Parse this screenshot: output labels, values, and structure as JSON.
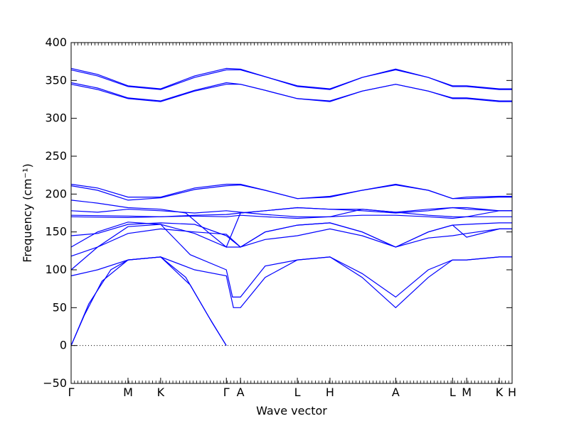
{
  "chart_data": {
    "type": "line",
    "title": "",
    "xlabel": "Wave vector",
    "ylabel": "Frequency (cm⁻¹)",
    "ylim": [
      -50,
      400
    ],
    "yticks": [
      -50,
      0,
      50,
      100,
      150,
      200,
      250,
      300,
      350,
      400
    ],
    "line_color": "#0000ff",
    "zero_line": {
      "y": 0,
      "style": "dotted",
      "color": "#000000"
    },
    "kpath": [
      {
        "label": "Γ",
        "x": 0.0
      },
      {
        "label": "M",
        "x": 0.129
      },
      {
        "label": "K",
        "x": 0.203
      },
      {
        "label": "Γ",
        "x": 0.352
      },
      {
        "label": "A",
        "x": 0.384
      },
      {
        "label": "L",
        "x": 0.513
      },
      {
        "label": "H",
        "x": 0.587
      },
      {
        "label": "A",
        "x": 0.736
      },
      {
        "label": "L",
        "x": 0.865
      },
      {
        "label": "M",
        "x": 0.897
      },
      {
        "label": "K",
        "x": 0.971
      },
      {
        "label": "H",
        "x": 1.0
      }
    ],
    "series": [
      {
        "points": [
          [
            0,
            0
          ],
          [
            0.03,
            40
          ],
          [
            0.07,
            85
          ],
          [
            0.129,
            113
          ],
          [
            0.203,
            117
          ],
          [
            0.26,
            90
          ],
          [
            0.31,
            40
          ],
          [
            0.352,
            0
          ]
        ]
      },
      {
        "points": [
          [
            0,
            0
          ],
          [
            0.04,
            55
          ],
          [
            0.09,
            100
          ],
          [
            0.129,
            113
          ],
          [
            0.203,
            117
          ],
          [
            0.27,
            80
          ],
          [
            0.32,
            30
          ],
          [
            0.352,
            0
          ]
        ]
      },
      {
        "points": [
          [
            0,
            92
          ],
          [
            0.06,
            100
          ],
          [
            0.129,
            113
          ],
          [
            0.203,
            117
          ],
          [
            0.28,
            100
          ],
          [
            0.352,
            92
          ],
          [
            0.368,
            50
          ],
          [
            0.384,
            50
          ],
          [
            0.44,
            90
          ],
          [
            0.513,
            113
          ],
          [
            0.587,
            117
          ],
          [
            0.66,
            90
          ],
          [
            0.736,
            50
          ],
          [
            0.81,
            90
          ],
          [
            0.865,
            113
          ],
          [
            0.897,
            113
          ],
          [
            0.971,
            117
          ],
          [
            1.0,
            117
          ]
        ]
      },
      {
        "points": [
          [
            0,
            100
          ],
          [
            0.06,
            130
          ],
          [
            0.129,
            157
          ],
          [
            0.203,
            160
          ],
          [
            0.27,
            120
          ],
          [
            0.352,
            100
          ],
          [
            0.366,
            64
          ],
          [
            0.384,
            64
          ],
          [
            0.44,
            105
          ],
          [
            0.513,
            113
          ],
          [
            0.587,
            117
          ],
          [
            0.66,
            95
          ],
          [
            0.736,
            64
          ],
          [
            0.81,
            100
          ],
          [
            0.865,
            113
          ],
          [
            0.897,
            113
          ],
          [
            0.971,
            117
          ],
          [
            1.0,
            117
          ]
        ]
      },
      {
        "points": [
          [
            0,
            118
          ],
          [
            0.06,
            130
          ],
          [
            0.129,
            148
          ],
          [
            0.203,
            154
          ],
          [
            0.28,
            150
          ],
          [
            0.352,
            147
          ],
          [
            0.384,
            130
          ],
          [
            0.44,
            140
          ],
          [
            0.513,
            145
          ],
          [
            0.587,
            154
          ],
          [
            0.66,
            145
          ],
          [
            0.736,
            130
          ],
          [
            0.81,
            142
          ],
          [
            0.865,
            145
          ],
          [
            0.897,
            148
          ],
          [
            0.971,
            154
          ],
          [
            1.0,
            154
          ]
        ]
      },
      {
        "points": [
          [
            0,
            130
          ],
          [
            0.06,
            150
          ],
          [
            0.129,
            163
          ],
          [
            0.203,
            160
          ],
          [
            0.28,
            148
          ],
          [
            0.352,
            130
          ],
          [
            0.384,
            130
          ],
          [
            0.44,
            150
          ],
          [
            0.513,
            159
          ],
          [
            0.587,
            162
          ],
          [
            0.66,
            150
          ],
          [
            0.736,
            130
          ],
          [
            0.81,
            150
          ],
          [
            0.865,
            159
          ],
          [
            0.897,
            143
          ],
          [
            0.971,
            154
          ],
          [
            1.0,
            154
          ]
        ]
      },
      {
        "points": [
          [
            0,
            145
          ],
          [
            0.06,
            148
          ],
          [
            0.129,
            160
          ],
          [
            0.203,
            162
          ],
          [
            0.28,
            160
          ],
          [
            0.352,
            145
          ],
          [
            0.384,
            130
          ],
          [
            0.44,
            150
          ],
          [
            0.513,
            159
          ],
          [
            0.587,
            162
          ],
          [
            0.66,
            150
          ],
          [
            0.736,
            130
          ],
          [
            0.81,
            150
          ],
          [
            0.865,
            159
          ],
          [
            0.897,
            160
          ],
          [
            0.971,
            162
          ],
          [
            1.0,
            162
          ]
        ]
      },
      {
        "points": [
          [
            0,
            170
          ],
          [
            0.129,
            169
          ],
          [
            0.203,
            170
          ],
          [
            0.28,
            171
          ],
          [
            0.352,
            170
          ],
          [
            0.384,
            172
          ],
          [
            0.44,
            170
          ],
          [
            0.513,
            168
          ],
          [
            0.587,
            170
          ],
          [
            0.66,
            172
          ],
          [
            0.736,
            172
          ],
          [
            0.81,
            170
          ],
          [
            0.865,
            168
          ],
          [
            0.897,
            170
          ],
          [
            0.971,
            170
          ],
          [
            1.0,
            170
          ]
        ]
      },
      {
        "points": [
          [
            0,
            172
          ],
          [
            0.129,
            171
          ],
          [
            0.203,
            170
          ],
          [
            0.28,
            172
          ],
          [
            0.352,
            173
          ],
          [
            0.384,
            175
          ],
          [
            0.44,
            178
          ],
          [
            0.513,
            182
          ],
          [
            0.587,
            180
          ],
          [
            0.66,
            178
          ],
          [
            0.736,
            175
          ],
          [
            0.81,
            178
          ],
          [
            0.865,
            182
          ],
          [
            0.897,
            180
          ],
          [
            0.971,
            178
          ],
          [
            1.0,
            178
          ]
        ]
      },
      {
        "points": [
          [
            0,
            178
          ],
          [
            0.06,
            176
          ],
          [
            0.129,
            180
          ],
          [
            0.203,
            178
          ],
          [
            0.28,
            175
          ],
          [
            0.352,
            178
          ],
          [
            0.384,
            176
          ],
          [
            0.44,
            173
          ],
          [
            0.513,
            170
          ],
          [
            0.587,
            170
          ],
          [
            0.66,
            180
          ],
          [
            0.736,
            176
          ],
          [
            0.81,
            172
          ],
          [
            0.865,
            170
          ],
          [
            0.897,
            170
          ],
          [
            0.971,
            178
          ],
          [
            1.0,
            178
          ]
        ]
      },
      {
        "points": [
          [
            0,
            192
          ],
          [
            0.06,
            188
          ],
          [
            0.129,
            182
          ],
          [
            0.203,
            180
          ],
          [
            0.26,
            175
          ],
          [
            0.31,
            150
          ],
          [
            0.352,
            130
          ],
          [
            0.384,
            175
          ],
          [
            0.44,
            178
          ],
          [
            0.513,
            182
          ],
          [
            0.587,
            180
          ],
          [
            0.66,
            180
          ],
          [
            0.736,
            176
          ],
          [
            0.81,
            180
          ],
          [
            0.865,
            182
          ],
          [
            0.897,
            182
          ],
          [
            0.971,
            178
          ],
          [
            1.0,
            178
          ]
        ]
      },
      {
        "points": [
          [
            0,
            211
          ],
          [
            0.06,
            205
          ],
          [
            0.129,
            192
          ],
          [
            0.203,
            195
          ],
          [
            0.28,
            206
          ],
          [
            0.352,
            211
          ],
          [
            0.384,
            212
          ],
          [
            0.44,
            205
          ],
          [
            0.513,
            194
          ],
          [
            0.587,
            196
          ],
          [
            0.66,
            205
          ],
          [
            0.736,
            212
          ],
          [
            0.81,
            205
          ],
          [
            0.865,
            194
          ],
          [
            0.897,
            194
          ],
          [
            0.971,
            196
          ],
          [
            1.0,
            196
          ]
        ]
      },
      {
        "points": [
          [
            0,
            213
          ],
          [
            0.06,
            208
          ],
          [
            0.129,
            196
          ],
          [
            0.203,
            196
          ],
          [
            0.28,
            208
          ],
          [
            0.352,
            213
          ],
          [
            0.384,
            213
          ],
          [
            0.44,
            205
          ],
          [
            0.513,
            194
          ],
          [
            0.587,
            197
          ],
          [
            0.66,
            205
          ],
          [
            0.736,
            213
          ],
          [
            0.81,
            205
          ],
          [
            0.865,
            194
          ],
          [
            0.897,
            196
          ],
          [
            0.971,
            197
          ],
          [
            1.0,
            197
          ]
        ]
      },
      {
        "points": [
          [
            0,
            345
          ],
          [
            0.06,
            338
          ],
          [
            0.129,
            326
          ],
          [
            0.203,
            322
          ],
          [
            0.28,
            336
          ],
          [
            0.352,
            345
          ],
          [
            0.384,
            345
          ],
          [
            0.44,
            337
          ],
          [
            0.513,
            326
          ],
          [
            0.587,
            322
          ],
          [
            0.66,
            336
          ],
          [
            0.736,
            345
          ],
          [
            0.81,
            336
          ],
          [
            0.865,
            326
          ],
          [
            0.897,
            326
          ],
          [
            0.971,
            322
          ],
          [
            1.0,
            322
          ]
        ]
      },
      {
        "points": [
          [
            0,
            347
          ],
          [
            0.06,
            340
          ],
          [
            0.129,
            327
          ],
          [
            0.203,
            323
          ],
          [
            0.28,
            337
          ],
          [
            0.352,
            347
          ],
          [
            0.384,
            345
          ],
          [
            0.44,
            337
          ],
          [
            0.513,
            326
          ],
          [
            0.587,
            323
          ],
          [
            0.66,
            336
          ],
          [
            0.736,
            345
          ],
          [
            0.81,
            336
          ],
          [
            0.865,
            327
          ],
          [
            0.897,
            327
          ],
          [
            0.971,
            323
          ],
          [
            1.0,
            323
          ]
        ]
      },
      {
        "points": [
          [
            0,
            364
          ],
          [
            0.06,
            356
          ],
          [
            0.129,
            342
          ],
          [
            0.203,
            338
          ],
          [
            0.28,
            354
          ],
          [
            0.352,
            364
          ],
          [
            0.384,
            364
          ],
          [
            0.44,
            355
          ],
          [
            0.513,
            342
          ],
          [
            0.587,
            338
          ],
          [
            0.66,
            354
          ],
          [
            0.736,
            364
          ],
          [
            0.81,
            354
          ],
          [
            0.865,
            342
          ],
          [
            0.897,
            342
          ],
          [
            0.971,
            338
          ],
          [
            1.0,
            338
          ]
        ]
      },
      {
        "points": [
          [
            0,
            366
          ],
          [
            0.06,
            358
          ],
          [
            0.129,
            343
          ],
          [
            0.203,
            339
          ],
          [
            0.28,
            356
          ],
          [
            0.352,
            366
          ],
          [
            0.384,
            365
          ],
          [
            0.44,
            355
          ],
          [
            0.513,
            343
          ],
          [
            0.587,
            339
          ],
          [
            0.66,
            354
          ],
          [
            0.736,
            365
          ],
          [
            0.81,
            354
          ],
          [
            0.865,
            343
          ],
          [
            0.897,
            343
          ],
          [
            0.971,
            339
          ],
          [
            1.0,
            339
          ]
        ]
      }
    ]
  }
}
